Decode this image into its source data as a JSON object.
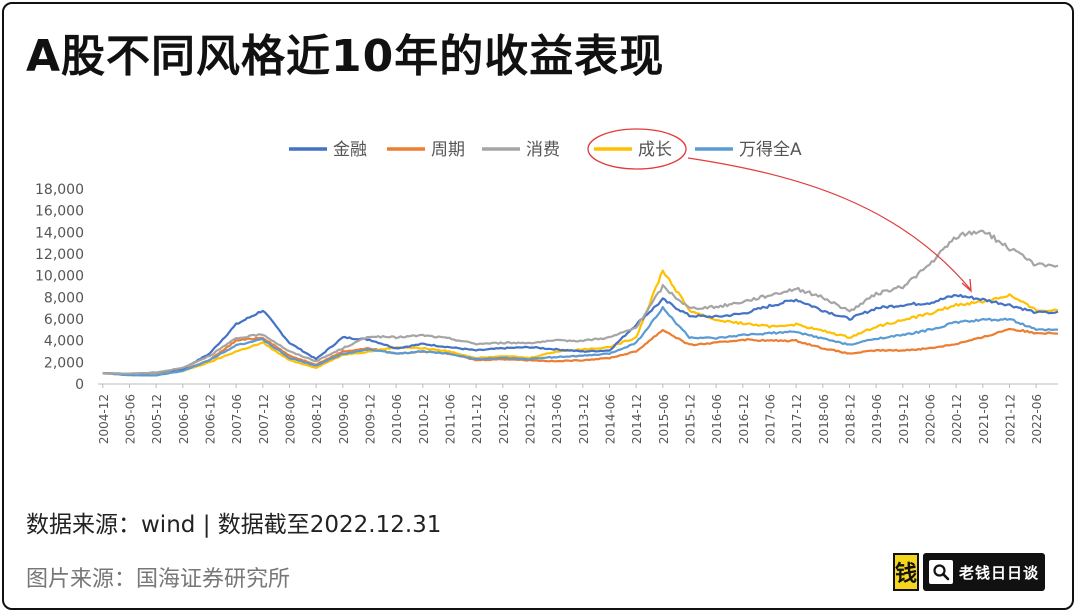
{
  "title": "A股不同风格近10年的收益表现",
  "note": "数据来源：wind | 数据截至2022.12.31",
  "source": "图片来源：国海证券研究所",
  "logo": {
    "mark_char": "钱",
    "text": "老钱日日谈",
    "icon": "search-icon",
    "mark_color": "#f6d51f"
  },
  "chart_data": {
    "type": "line",
    "title": "",
    "xlabel": "",
    "ylabel": "",
    "ylim": [
      0,
      18000
    ],
    "yticks": [
      "0",
      "2,000",
      "4,000",
      "6,000",
      "8,000",
      "10,000",
      "12,000",
      "14,000",
      "16,000",
      "18,000"
    ],
    "grid": false,
    "legend_position": "top",
    "x": [
      "2004-12",
      "2005-06",
      "2005-12",
      "2006-06",
      "2006-12",
      "2007-06",
      "2007-12",
      "2008-06",
      "2008-12",
      "2009-06",
      "2009-12",
      "2010-06",
      "2010-12",
      "2011-06",
      "2011-12",
      "2012-06",
      "2012-12",
      "2013-06",
      "2013-12",
      "2014-06",
      "2014-12",
      "2015-06",
      "2015-12",
      "2016-06",
      "2016-12",
      "2017-06",
      "2017-12",
      "2018-06",
      "2018-12",
      "2019-06",
      "2019-12",
      "2020-06",
      "2020-12",
      "2021-06",
      "2021-12",
      "2022-06"
    ],
    "series": [
      {
        "name": "金融",
        "color": "#4472c4",
        "values": [
          1000,
          950,
          1050,
          1400,
          2800,
          5500,
          6800,
          3800,
          2300,
          4300,
          4100,
          3300,
          3700,
          3400,
          3100,
          3300,
          3400,
          3200,
          3000,
          3100,
          5500,
          7800,
          6300,
          6200,
          6500,
          7200,
          7800,
          6800,
          6000,
          7000,
          7300,
          7500,
          8200,
          7800,
          7300,
          6600
        ]
      },
      {
        "name": "周期",
        "color": "#ed7d31",
        "values": [
          1000,
          900,
          1000,
          1300,
          2200,
          4000,
          4300,
          2600,
          1800,
          3000,
          3300,
          2800,
          3000,
          2800,
          2200,
          2300,
          2200,
          2100,
          2200,
          2400,
          3000,
          5000,
          3600,
          3800,
          4100,
          4000,
          4000,
          3300,
          2800,
          3100,
          3100,
          3300,
          3700,
          4300,
          5100,
          4700
        ]
      },
      {
        "name": "消费",
        "color": "#a5a5a5",
        "values": [
          1000,
          950,
          1050,
          1500,
          2600,
          4200,
          4600,
          3000,
          2100,
          3300,
          4400,
          4300,
          4500,
          4200,
          3700,
          3800,
          3800,
          4000,
          4000,
          4300,
          5200,
          9000,
          7000,
          7100,
          7600,
          8200,
          8800,
          8000,
          6700,
          8300,
          9000,
          11000,
          13600,
          14200,
          12500,
          11000
        ]
      },
      {
        "name": "成长",
        "color": "#ffc000",
        "values": [
          1000,
          850,
          900,
          1200,
          2000,
          3000,
          3800,
          2200,
          1500,
          2700,
          3000,
          3400,
          3300,
          3000,
          2400,
          2600,
          2400,
          3000,
          3200,
          3400,
          4300,
          10500,
          6800,
          5900,
          5600,
          5300,
          5500,
          4900,
          4300,
          5300,
          5900,
          6500,
          7300,
          7600,
          8200,
          6800
        ]
      },
      {
        "name": "万得全A",
        "color": "#5b9bd5",
        "values": [
          1000,
          800,
          800,
          1200,
          2200,
          3600,
          4100,
          2400,
          1700,
          2800,
          3200,
          2800,
          3000,
          2800,
          2300,
          2400,
          2300,
          2500,
          2600,
          2800,
          3800,
          7000,
          4300,
          4200,
          4500,
          4700,
          4800,
          4200,
          3600,
          4200,
          4500,
          5000,
          5700,
          5900,
          6000,
          5000
        ]
      }
    ],
    "annotation": {
      "type": "red-circle-arrow",
      "target_series": "成长",
      "color": "#e23b3b"
    }
  }
}
